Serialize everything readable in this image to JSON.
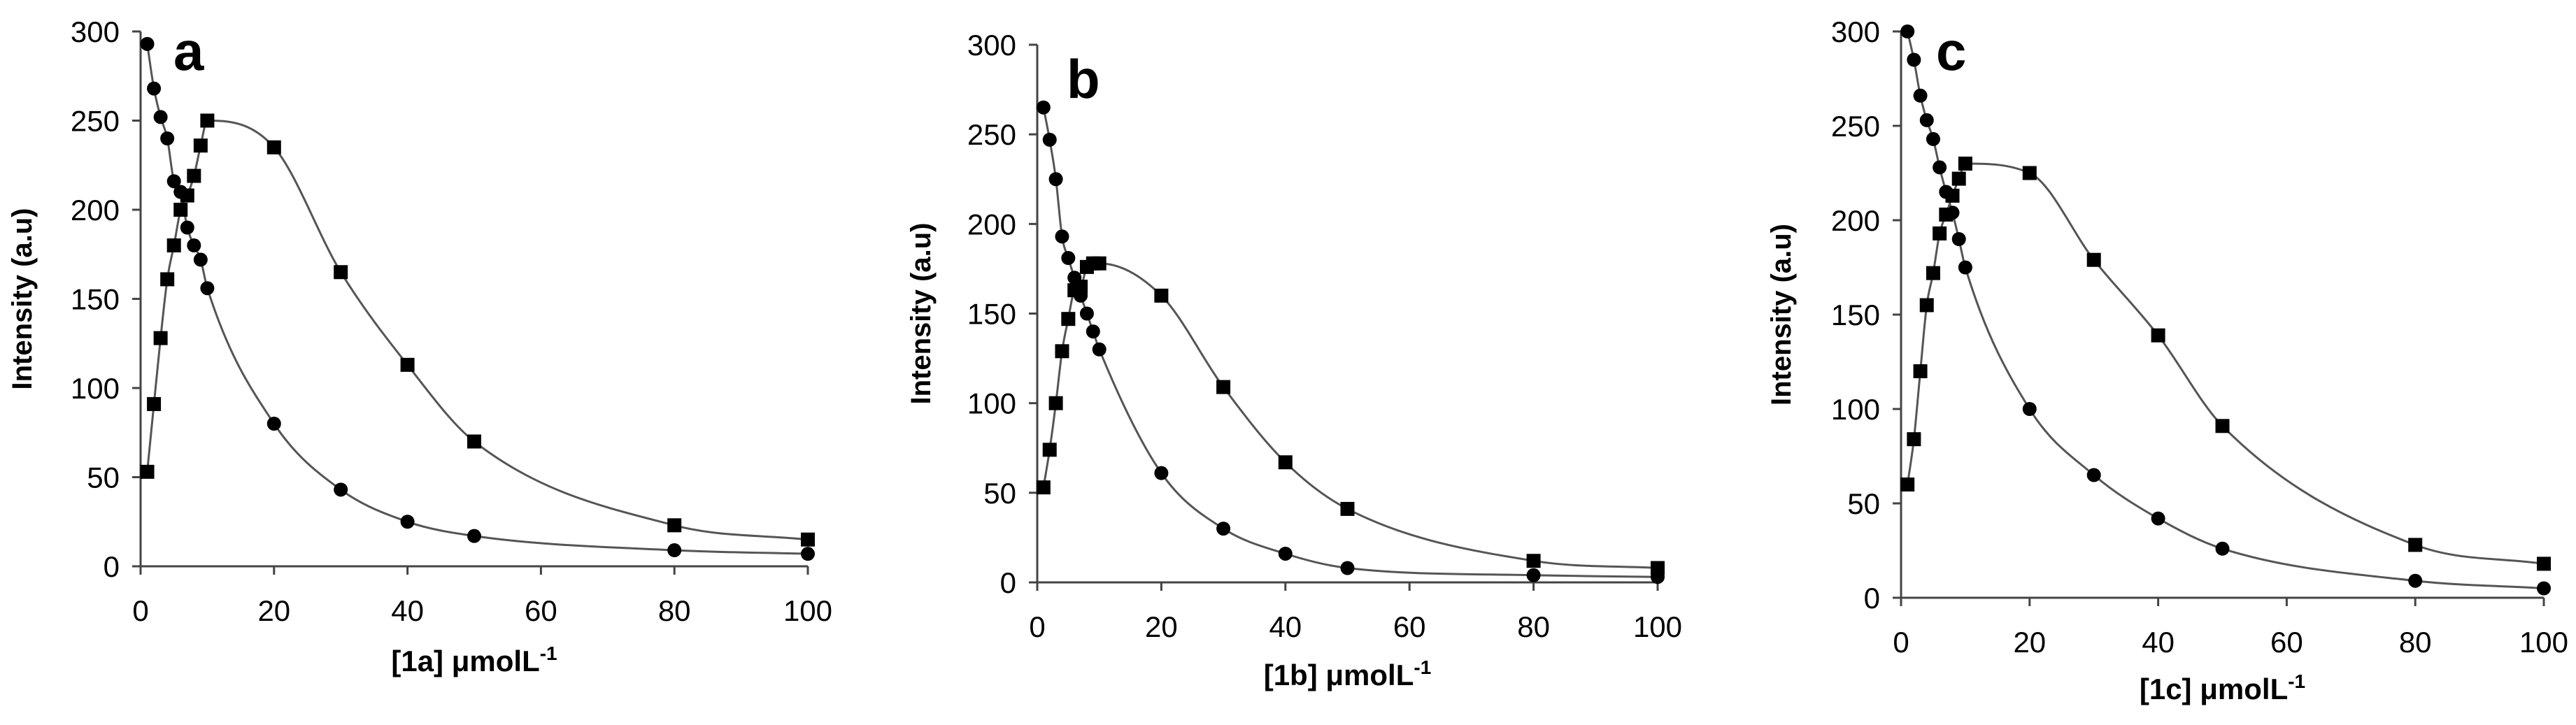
{
  "chart_data": [
    {
      "type": "line",
      "panel_label": "a",
      "xlabel": "[1a] μmolL",
      "xlabel_sup": "-1",
      "ylabel": "Intensity (a.u)",
      "xlim": [
        0,
        100
      ],
      "ylim": [
        0,
        300
      ],
      "xticks": [
        0,
        20,
        40,
        60,
        80,
        100
      ],
      "yticks": [
        0,
        50,
        100,
        150,
        200,
        250,
        300
      ],
      "series": [
        {
          "name": "circle series",
          "marker": "circle",
          "x": [
            1,
            2,
            3,
            4,
            5,
            6,
            7,
            8,
            9,
            10,
            20,
            30,
            40,
            50,
            80,
            100
          ],
          "values": [
            293,
            268,
            252,
            240,
            216,
            210,
            190,
            180,
            172,
            156,
            80,
            43,
            25,
            17,
            9,
            7
          ]
        },
        {
          "name": "square series",
          "marker": "square",
          "x": [
            1,
            2,
            3,
            4,
            5,
            6,
            7,
            8,
            9,
            10,
            20,
            30,
            40,
            50,
            80,
            100
          ],
          "values": [
            53,
            91,
            128,
            161,
            180,
            200,
            208,
            219,
            236,
            250,
            235,
            165,
            113,
            70,
            23,
            15
          ]
        }
      ]
    },
    {
      "type": "line",
      "panel_label": "b",
      "xlabel": "[1b] μmolL",
      "xlabel_sup": "-1",
      "ylabel": "Intensity (a.u)",
      "xlim": [
        0,
        100
      ],
      "ylim": [
        0,
        300
      ],
      "xticks": [
        0,
        20,
        40,
        60,
        80,
        100
      ],
      "yticks": [
        0,
        50,
        100,
        150,
        200,
        250,
        300
      ],
      "series": [
        {
          "name": "circle series",
          "marker": "circle",
          "x": [
            1,
            2,
            3,
            4,
            5,
            6,
            7,
            8,
            9,
            10,
            20,
            30,
            40,
            50,
            80,
            100
          ],
          "values": [
            265,
            247,
            225,
            193,
            181,
            170,
            160,
            150,
            140,
            130,
            61,
            30,
            16,
            8,
            4,
            3
          ]
        },
        {
          "name": "square series",
          "marker": "square",
          "x": [
            1,
            2,
            3,
            4,
            5,
            6,
            7,
            8,
            9,
            10,
            20,
            30,
            40,
            50,
            80,
            100
          ],
          "values": [
            53,
            74,
            100,
            129,
            147,
            163,
            165,
            176,
            178,
            178,
            160,
            109,
            67,
            41,
            12,
            8
          ]
        }
      ]
    },
    {
      "type": "line",
      "panel_label": "c",
      "xlabel": "[1c] μmolL",
      "xlabel_sup": "-1",
      "ylabel": "Intensity (a.u)",
      "xlim": [
        0,
        100
      ],
      "ylim": [
        0,
        300
      ],
      "xticks": [
        0,
        20,
        40,
        60,
        80,
        100
      ],
      "yticks": [
        0,
        50,
        100,
        150,
        200,
        250,
        300
      ],
      "series": [
        {
          "name": "circle series",
          "marker": "circle",
          "x": [
            1,
            2,
            3,
            4,
            5,
            6,
            7,
            8,
            9,
            10,
            20,
            30,
            40,
            50,
            80,
            100
          ],
          "values": [
            300,
            285,
            266,
            253,
            243,
            228,
            215,
            204,
            190,
            175,
            100,
            65,
            42,
            26,
            9,
            5
          ]
        },
        {
          "name": "square series",
          "marker": "square",
          "x": [
            1,
            2,
            3,
            4,
            5,
            6,
            7,
            8,
            9,
            10,
            20,
            30,
            40,
            50,
            80,
            100
          ],
          "values": [
            60,
            84,
            120,
            155,
            172,
            193,
            203,
            213,
            222,
            230,
            225,
            179,
            139,
            91,
            28,
            18
          ]
        }
      ]
    }
  ]
}
